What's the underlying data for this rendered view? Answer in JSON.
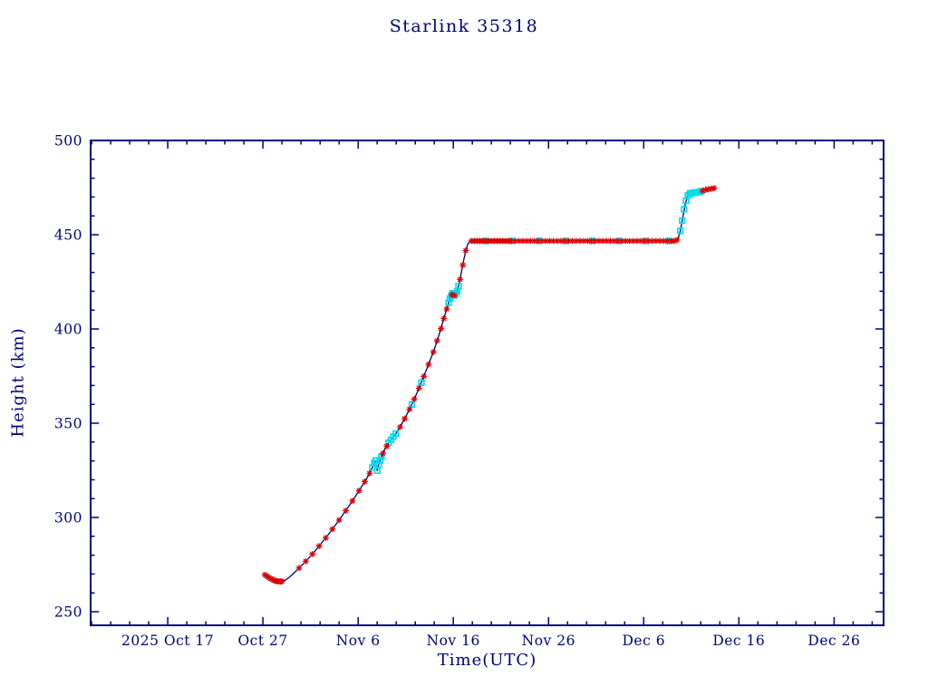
{
  "chart_data": {
    "type": "line",
    "title": "Starlink 35318",
    "xlabel": "Time(UTC)",
    "ylabel": "Height (km)",
    "x_unit": "days since 2025 Oct 17",
    "xlim_days": [
      -8.1,
      75.2
    ],
    "ylim": [
      242.8,
      500
    ],
    "x_ticks": [
      {
        "day": 0,
        "label": "2025 Oct 17"
      },
      {
        "day": 10,
        "label": "Oct 27"
      },
      {
        "day": 20,
        "label": "Nov 6"
      },
      {
        "day": 30,
        "label": "Nov 16"
      },
      {
        "day": 40,
        "label": "Nov 26"
      },
      {
        "day": 50,
        "label": "Dec 6"
      },
      {
        "day": 60,
        "label": "Dec 16"
      },
      {
        "day": 70,
        "label": "Dec 26"
      }
    ],
    "x_minor_step_days": 2,
    "y_ticks": [
      250,
      300,
      350,
      400,
      450,
      500
    ],
    "y_minor_step": 10,
    "grid": false,
    "legend": "none",
    "colors": {
      "axis": "#000080",
      "line": "#000080",
      "red_marker": "#dd0000",
      "cyan_marker": "#00dde8",
      "background": "#ffffff"
    },
    "line": [
      [
        10.2,
        269.6
      ],
      [
        10.5,
        268.6
      ],
      [
        10.8,
        267.6
      ],
      [
        11.1,
        266.8
      ],
      [
        11.4,
        266.3
      ],
      [
        11.7,
        266.0
      ],
      [
        12.0,
        266.1
      ],
      [
        12.3,
        266.6
      ],
      [
        12.7,
        268.0
      ],
      [
        13.2,
        270.2
      ],
      [
        13.8,
        273.2
      ],
      [
        14.5,
        276.8
      ],
      [
        15.2,
        280.6
      ],
      [
        15.9,
        284.8
      ],
      [
        16.6,
        289.2
      ],
      [
        17.3,
        293.8
      ],
      [
        18.0,
        298.6
      ],
      [
        18.7,
        303.6
      ],
      [
        19.4,
        308.8
      ],
      [
        20.1,
        314.2
      ],
      [
        20.7,
        319.0
      ],
      [
        21.2,
        323.4
      ],
      [
        21.6,
        327.6
      ],
      [
        21.85,
        330.2
      ],
      [
        22.0,
        324.8
      ],
      [
        22.15,
        328.0
      ],
      [
        22.45,
        332.2
      ],
      [
        22.8,
        336.2
      ],
      [
        23.2,
        339.6
      ],
      [
        23.45,
        341.2
      ],
      [
        23.7,
        342.8
      ],
      [
        23.95,
        344.5
      ],
      [
        24.4,
        348.0
      ],
      [
        24.9,
        352.4
      ],
      [
        25.4,
        357.4
      ],
      [
        25.9,
        362.8
      ],
      [
        26.4,
        368.6
      ],
      [
        26.9,
        374.8
      ],
      [
        27.4,
        381.2
      ],
      [
        27.9,
        387.8
      ],
      [
        28.3,
        393.8
      ],
      [
        28.7,
        400.2
      ],
      [
        29.0,
        405.6
      ],
      [
        29.3,
        410.6
      ],
      [
        29.55,
        414.6
      ],
      [
        29.75,
        417.4
      ],
      [
        29.95,
        418.9
      ],
      [
        30.15,
        417.6
      ],
      [
        30.35,
        419.4
      ],
      [
        30.55,
        422.8
      ],
      [
        30.8,
        428.8
      ],
      [
        31.05,
        435.4
      ],
      [
        31.3,
        441.6
      ],
      [
        31.55,
        445.4
      ],
      [
        31.9,
        446.7
      ],
      [
        33.0,
        446.7
      ],
      [
        35.0,
        446.7
      ],
      [
        37.0,
        446.7
      ],
      [
        39.0,
        446.7
      ],
      [
        41.0,
        446.7
      ],
      [
        43.0,
        446.7
      ],
      [
        45.0,
        446.7
      ],
      [
        47.0,
        446.7
      ],
      [
        49.0,
        446.7
      ],
      [
        51.0,
        446.7
      ],
      [
        53.3,
        446.7
      ],
      [
        53.6,
        447.6
      ],
      [
        53.85,
        452.0
      ],
      [
        54.1,
        459.0
      ],
      [
        54.35,
        466.0
      ],
      [
        54.6,
        470.4
      ],
      [
        54.85,
        471.9
      ],
      [
        55.2,
        472.2
      ],
      [
        55.6,
        472.5
      ],
      [
        56.0,
        473.1
      ],
      [
        56.5,
        473.8
      ],
      [
        57.0,
        474.3
      ],
      [
        57.5,
        474.8
      ]
    ],
    "markers": {
      "red": [
        [
          10.2,
          269.6
        ],
        [
          10.35,
          269.1
        ],
        [
          10.5,
          268.6
        ],
        [
          10.65,
          268.1
        ],
        [
          10.8,
          267.6
        ],
        [
          10.95,
          267.2
        ],
        [
          11.1,
          266.8
        ],
        [
          11.25,
          266.5
        ],
        [
          11.4,
          266.3
        ],
        [
          11.55,
          266.1
        ],
        [
          11.7,
          266.0
        ],
        [
          11.85,
          266.0
        ],
        [
          12.0,
          266.1
        ],
        [
          13.8,
          273.2
        ],
        [
          14.5,
          276.8
        ],
        [
          15.2,
          280.6
        ],
        [
          15.9,
          284.8
        ],
        [
          16.6,
          289.2
        ],
        [
          17.3,
          293.8
        ],
        [
          18.0,
          298.6
        ],
        [
          18.7,
          303.6
        ],
        [
          19.4,
          308.8
        ],
        [
          20.1,
          314.2
        ],
        [
          20.7,
          319.0
        ],
        [
          21.2,
          323.4
        ],
        [
          22.6,
          334.0
        ],
        [
          23.0,
          337.8
        ],
        [
          24.4,
          348.0
        ],
        [
          24.9,
          352.4
        ],
        [
          25.4,
          357.4
        ],
        [
          25.9,
          362.8
        ],
        [
          26.4,
          368.6
        ],
        [
          26.9,
          374.8
        ],
        [
          27.4,
          381.2
        ],
        [
          27.9,
          387.8
        ],
        [
          28.3,
          393.8
        ],
        [
          28.7,
          400.2
        ],
        [
          29.0,
          405.6
        ],
        [
          29.3,
          410.6
        ],
        [
          29.85,
          418.2
        ],
        [
          30.1,
          417.8
        ],
        [
          30.7,
          426.3
        ],
        [
          31.0,
          433.9
        ],
        [
          31.3,
          441.6
        ],
        [
          31.9,
          446.7
        ],
        [
          32.2,
          446.7
        ],
        [
          32.5,
          446.7
        ],
        [
          32.8,
          446.7
        ],
        [
          33.1,
          446.7
        ],
        [
          33.4,
          446.7
        ],
        [
          33.7,
          446.7
        ],
        [
          34.0,
          446.7
        ],
        [
          34.3,
          446.7
        ],
        [
          34.6,
          446.7
        ],
        [
          34.9,
          446.7
        ],
        [
          35.2,
          446.7
        ],
        [
          35.5,
          446.7
        ],
        [
          35.8,
          446.7
        ],
        [
          36.1,
          446.7
        ],
        [
          36.5,
          446.7
        ],
        [
          36.9,
          446.7
        ],
        [
          37.3,
          446.7
        ],
        [
          37.7,
          446.7
        ],
        [
          38.1,
          446.7
        ],
        [
          38.5,
          446.7
        ],
        [
          38.9,
          446.7
        ],
        [
          39.3,
          446.7
        ],
        [
          39.7,
          446.7
        ],
        [
          40.1,
          446.7
        ],
        [
          40.5,
          446.7
        ],
        [
          40.9,
          446.7
        ],
        [
          41.3,
          446.7
        ],
        [
          41.7,
          446.7
        ],
        [
          42.1,
          446.7
        ],
        [
          42.5,
          446.7
        ],
        [
          42.9,
          446.7
        ],
        [
          43.3,
          446.7
        ],
        [
          43.7,
          446.7
        ],
        [
          44.1,
          446.7
        ],
        [
          44.5,
          446.7
        ],
        [
          44.9,
          446.7
        ],
        [
          45.3,
          446.7
        ],
        [
          45.7,
          446.7
        ],
        [
          46.1,
          446.7
        ],
        [
          46.5,
          446.7
        ],
        [
          46.9,
          446.7
        ],
        [
          47.3,
          446.7
        ],
        [
          47.7,
          446.7
        ],
        [
          48.1,
          446.7
        ],
        [
          48.5,
          446.7
        ],
        [
          48.9,
          446.7
        ],
        [
          49.3,
          446.7
        ],
        [
          49.7,
          446.7
        ],
        [
          50.1,
          446.7
        ],
        [
          50.5,
          446.7
        ],
        [
          50.9,
          446.7
        ],
        [
          51.3,
          446.7
        ],
        [
          51.7,
          446.7
        ],
        [
          52.1,
          446.7
        ],
        [
          52.5,
          446.7
        ],
        [
          52.9,
          446.7
        ],
        [
          53.2,
          446.7
        ],
        [
          53.5,
          447.2
        ],
        [
          56.2,
          473.3
        ],
        [
          56.5,
          473.8
        ],
        [
          56.8,
          474.1
        ],
        [
          57.1,
          474.4
        ],
        [
          57.4,
          474.7
        ]
      ],
      "cyan": [
        [
          21.5,
          326.5
        ],
        [
          21.7,
          328.9
        ],
        [
          21.85,
          330.2
        ],
        [
          22.0,
          324.8
        ],
        [
          22.15,
          328.0
        ],
        [
          22.3,
          330.4
        ],
        [
          22.45,
          332.2
        ],
        [
          23.2,
          339.6
        ],
        [
          23.45,
          341.2
        ],
        [
          23.7,
          342.8
        ],
        [
          23.95,
          344.5
        ],
        [
          25.65,
          360.0
        ],
        [
          26.65,
          371.5
        ],
        [
          29.5,
          413.9
        ],
        [
          29.65,
          416.1
        ],
        [
          29.8,
          417.8
        ],
        [
          29.95,
          418.9
        ],
        [
          30.1,
          417.8
        ],
        [
          30.25,
          418.6
        ],
        [
          30.4,
          420.0
        ],
        [
          30.55,
          422.8
        ],
        [
          33.4,
          446.7
        ],
        [
          36.2,
          446.7
        ],
        [
          39.0,
          446.7
        ],
        [
          41.8,
          446.7
        ],
        [
          44.6,
          446.7
        ],
        [
          47.4,
          446.7
        ],
        [
          50.2,
          446.7
        ],
        [
          52.6,
          446.7
        ],
        [
          53.85,
          452.0
        ],
        [
          54.05,
          457.5
        ],
        [
          54.25,
          463.5
        ],
        [
          54.45,
          468.0
        ],
        [
          54.65,
          470.8
        ],
        [
          54.85,
          471.9
        ],
        [
          55.05,
          472.1
        ],
        [
          55.25,
          472.3
        ],
        [
          55.45,
          472.4
        ],
        [
          55.65,
          472.5
        ],
        [
          55.85,
          472.7
        ],
        [
          56.05,
          473.1
        ]
      ]
    }
  }
}
